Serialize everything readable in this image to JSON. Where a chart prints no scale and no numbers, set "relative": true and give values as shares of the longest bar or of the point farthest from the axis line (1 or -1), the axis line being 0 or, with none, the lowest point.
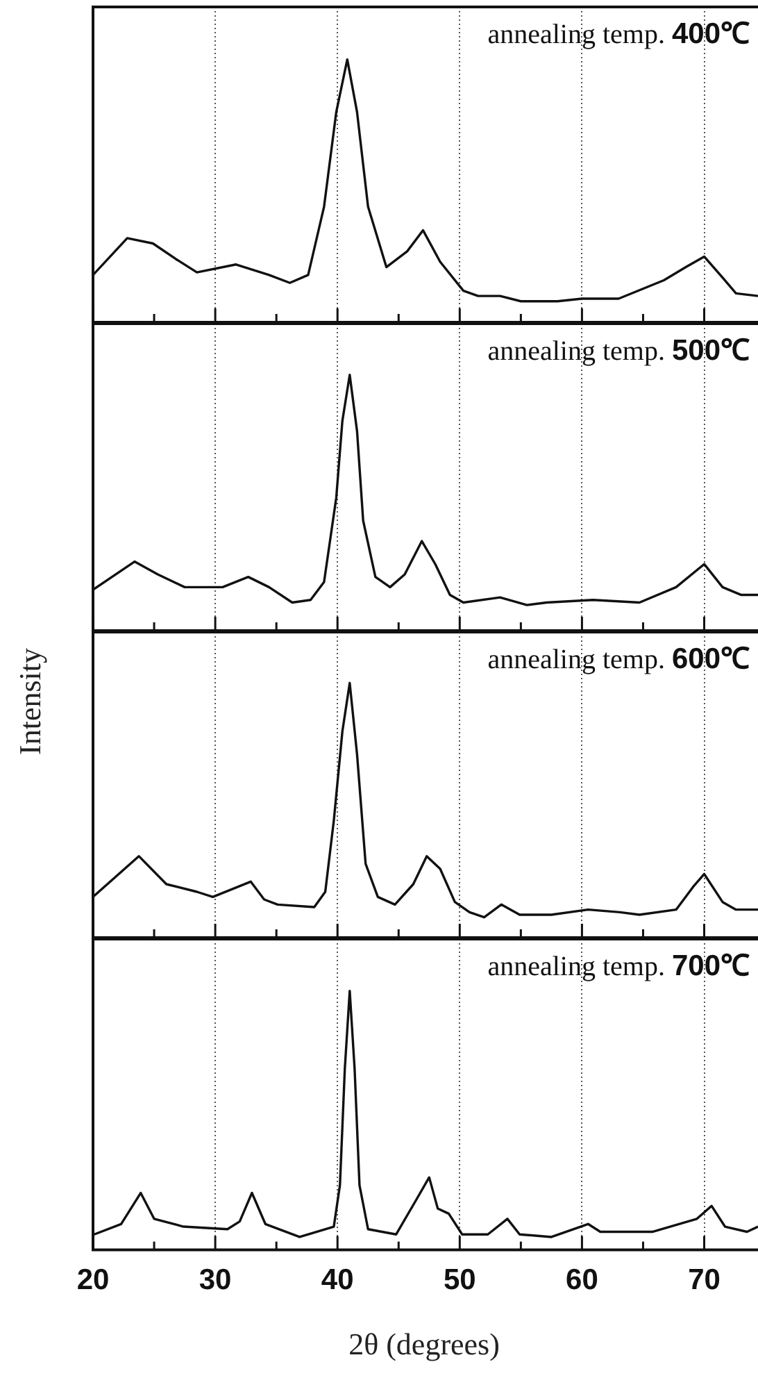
{
  "chart_data": [
    {
      "type": "line",
      "title": "annealing temp. 400℃",
      "relative": true,
      "color": "#111111",
      "marker": "none",
      "grid": "x",
      "tick_labels": false,
      "xlim": [
        20,
        74.4
      ],
      "xticks": [
        20,
        {
          "value": 25,
          "label": null
        },
        30,
        {
          "value": 35,
          "label": null
        },
        40,
        {
          "value": 45,
          "label": null
        },
        50,
        {
          "value": 55,
          "label": null
        },
        60,
        {
          "value": 65,
          "label": null
        },
        70
      ],
      "x": [
        20,
        22.8,
        24.9,
        26.8,
        28.5,
        31.7,
        34.4,
        36.1,
        37.6,
        38.9,
        39.9,
        40.8,
        41.6,
        42.5,
        44,
        45.7,
        47,
        48.4,
        50.3,
        51.5,
        53.3,
        55,
        58,
        60,
        63,
        66.7,
        68.5,
        70,
        71.5,
        72.6,
        74.4
      ],
      "values": [
        0.18,
        0.32,
        0.3,
        0.24,
        0.19,
        0.22,
        0.18,
        0.15,
        0.18,
        0.44,
        0.8,
        1,
        0.8,
        0.44,
        0.21,
        0.27,
        0.35,
        0.23,
        0.12,
        0.1,
        0.1,
        0.08,
        0.08,
        0.09,
        0.09,
        0.16,
        0.21,
        0.25,
        0.17,
        0.11,
        0.1
      ]
    },
    {
      "type": "line",
      "title": "annealing temp. 500℃",
      "relative": true,
      "color": "#111111",
      "marker": "none",
      "grid": "x",
      "tick_labels": false,
      "xlim": [
        20,
        74.4
      ],
      "xticks": [
        20,
        {
          "value": 25,
          "label": null
        },
        30,
        {
          "value": 35,
          "label": null
        },
        40,
        {
          "value": 45,
          "label": null
        },
        50,
        {
          "value": 55,
          "label": null
        },
        60,
        {
          "value": 65,
          "label": null
        },
        70
      ],
      "x": [
        20,
        23.4,
        25.3,
        27.5,
        30.6,
        32.7,
        34.4,
        36.3,
        37.8,
        38.9,
        39.9,
        40.4,
        41,
        41.6,
        42.1,
        43.1,
        44.3,
        45.5,
        46.9,
        48,
        49.2,
        50.3,
        53.3,
        55.5,
        57.1,
        60.9,
        64.7,
        67.7,
        70,
        71.5,
        73,
        74.4
      ],
      "values": [
        0.16,
        0.27,
        0.22,
        0.17,
        0.17,
        0.21,
        0.17,
        0.11,
        0.12,
        0.19,
        0.52,
        0.82,
        1,
        0.78,
        0.43,
        0.21,
        0.17,
        0.22,
        0.35,
        0.26,
        0.14,
        0.11,
        0.13,
        0.1,
        0.11,
        0.12,
        0.11,
        0.17,
        0.26,
        0.17,
        0.14,
        0.14
      ]
    },
    {
      "type": "line",
      "title": "annealing temp. 600℃",
      "ylabel": "Intensity",
      "relative": true,
      "color": "#111111",
      "marker": "none",
      "grid": "x",
      "tick_labels": false,
      "xlim": [
        20,
        74.4
      ],
      "xticks": [
        20,
        {
          "value": 25,
          "label": null
        },
        30,
        {
          "value": 35,
          "label": null
        },
        40,
        {
          "value": 45,
          "label": null
        },
        50,
        {
          "value": 55,
          "label": null
        },
        60,
        {
          "value": 65,
          "label": null
        },
        70
      ],
      "x": [
        20,
        23.75,
        26,
        28.5,
        29.8,
        32.9,
        34,
        35.1,
        38.1,
        39,
        39.7,
        40.4,
        41,
        41.6,
        42.3,
        43.3,
        44.7,
        46.2,
        47.3,
        48.4,
        49.6,
        50.8,
        52,
        53.4,
        54.9,
        57.5,
        60.5,
        63.1,
        64.7,
        67.7,
        69.1,
        70,
        71.5,
        72.6,
        74.4
      ],
      "values": [
        0.16,
        0.32,
        0.21,
        0.18,
        0.16,
        0.22,
        0.15,
        0.13,
        0.12,
        0.18,
        0.46,
        0.81,
        1,
        0.72,
        0.29,
        0.16,
        0.13,
        0.21,
        0.32,
        0.27,
        0.14,
        0.1,
        0.08,
        0.13,
        0.09,
        0.09,
        0.11,
        0.1,
        0.09,
        0.11,
        0.2,
        0.25,
        0.14,
        0.11,
        0.11
      ]
    },
    {
      "type": "line",
      "title": "annealing temp. 700℃",
      "xlabel": "2θ (degrees)",
      "relative": true,
      "color": "#111111",
      "marker": "none",
      "grid": "x",
      "tick_labels": "x",
      "xlim": [
        20,
        74.4
      ],
      "xticks": [
        20,
        {
          "value": 25,
          "label": null
        },
        30,
        {
          "value": 35,
          "label": null
        },
        40,
        {
          "value": 45,
          "label": null
        },
        50,
        {
          "value": 55,
          "label": null
        },
        60,
        {
          "value": 65,
          "label": null
        },
        70
      ],
      "x": [
        20.1,
        22.3,
        23.9,
        25,
        27.4,
        31,
        32,
        33,
        34.1,
        36.9,
        39.7,
        40.2,
        40.6,
        41,
        41.4,
        41.8,
        42.5,
        44.8,
        46.4,
        47.5,
        48.2,
        49.1,
        50.2,
        52.3,
        53.9,
        54.9,
        57.5,
        60.5,
        61.5,
        65.8,
        69.4,
        70.6,
        71.7,
        73.5,
        74.4
      ],
      "values": [
        0.06,
        0.1,
        0.22,
        0.12,
        0.09,
        0.08,
        0.11,
        0.22,
        0.1,
        0.05,
        0.09,
        0.25,
        0.7,
        1,
        0.7,
        0.25,
        0.08,
        0.06,
        0.19,
        0.28,
        0.16,
        0.14,
        0.06,
        0.06,
        0.12,
        0.06,
        0.05,
        0.1,
        0.07,
        0.07,
        0.12,
        0.17,
        0.09,
        0.07,
        0.09
      ]
    }
  ]
}
